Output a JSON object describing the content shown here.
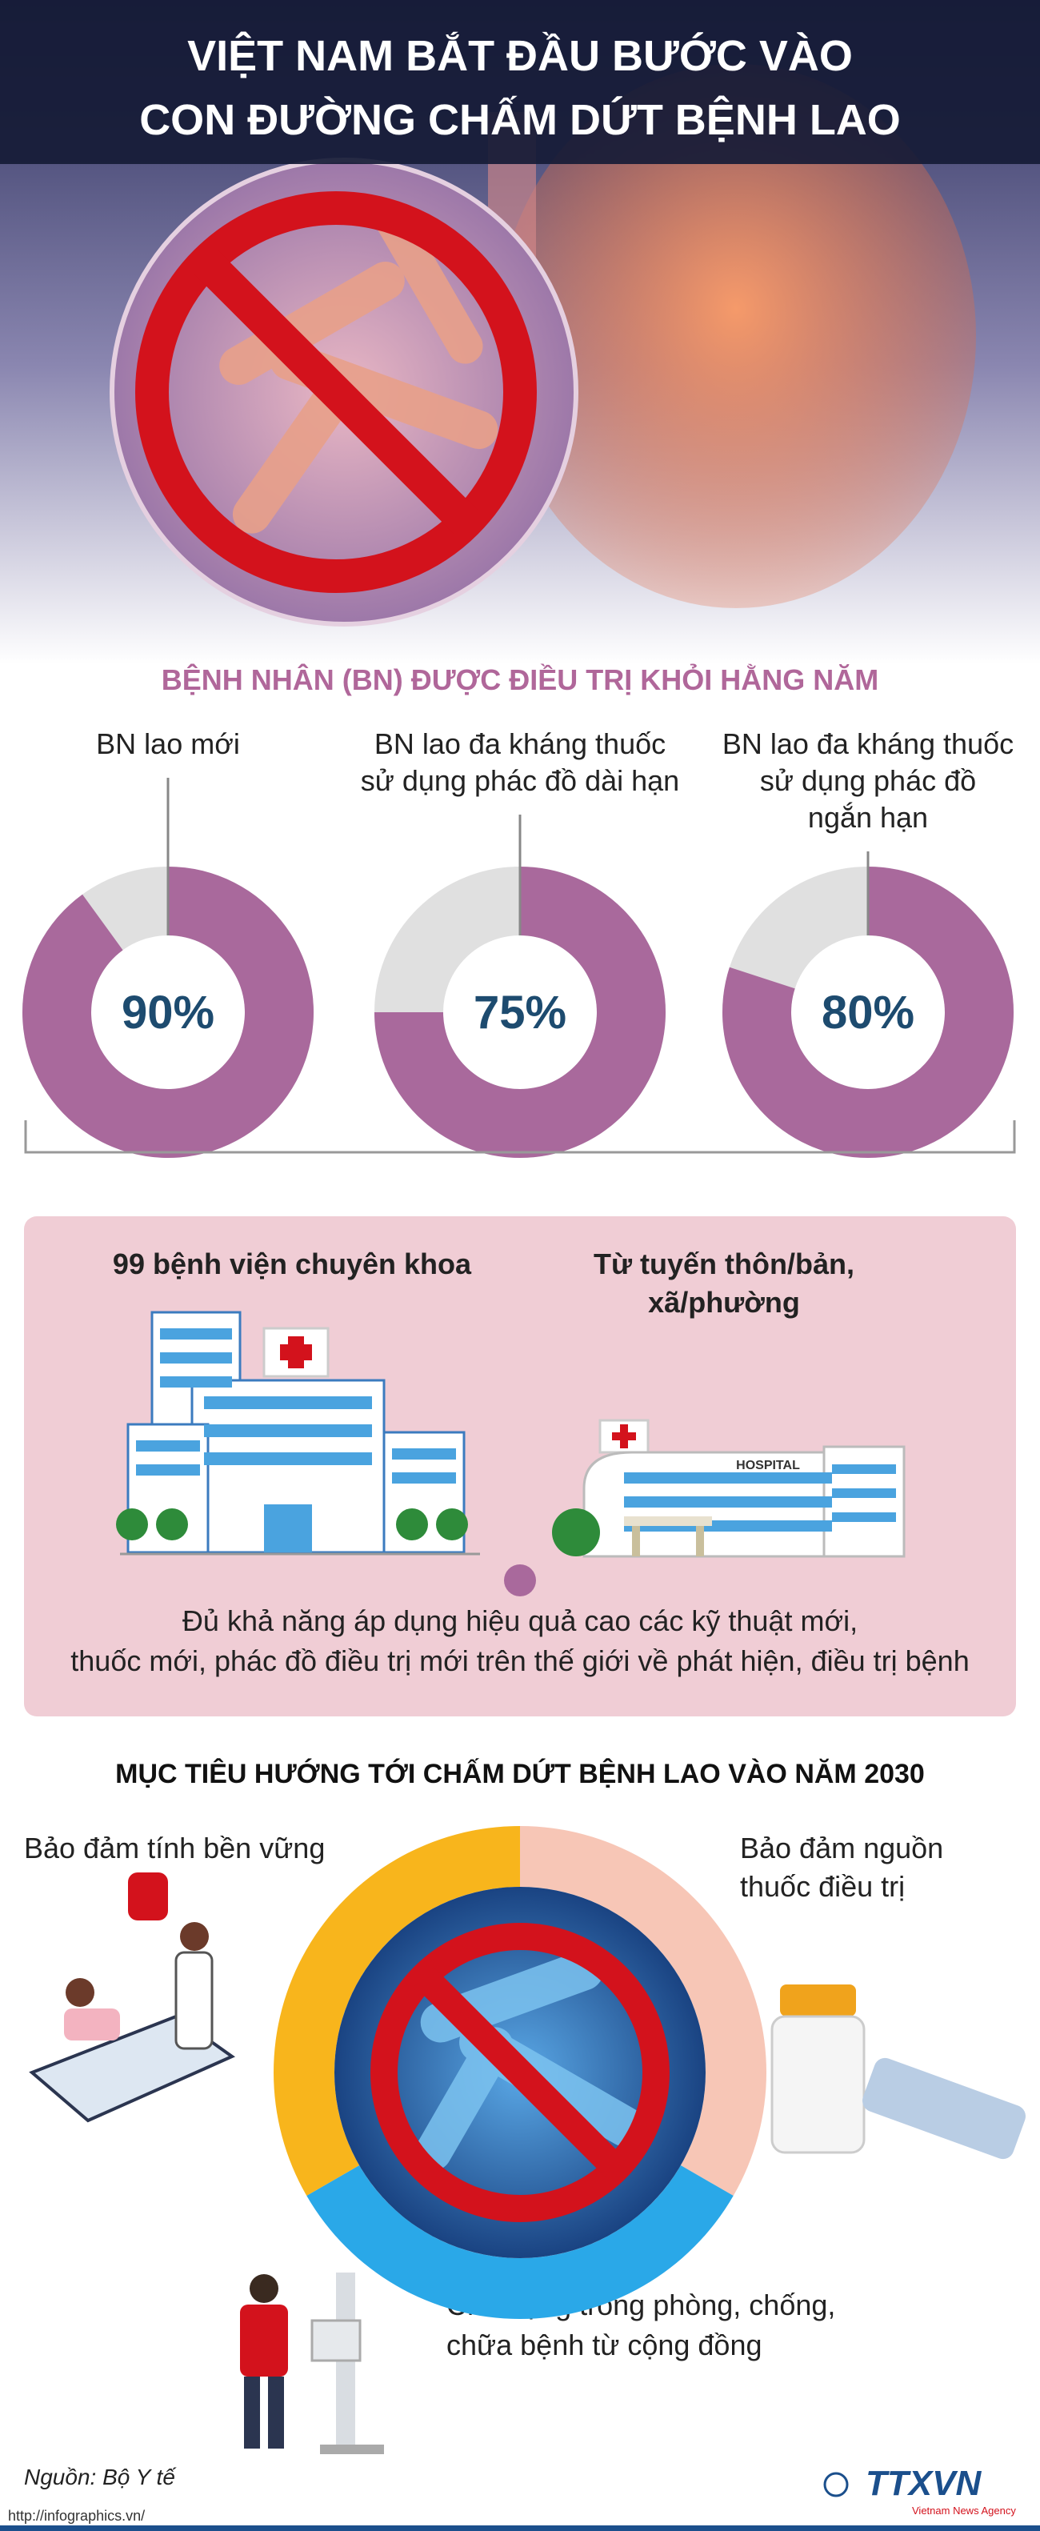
{
  "header": {
    "title": [
      "VIỆT NAM BẮT ĐẦU BƯỚC VÀO",
      "CON ĐƯỜNG CHẤM DỨT BỆNH LAO"
    ]
  },
  "treatment": {
    "title": "BỆNH NHÂN (BN) ĐƯỢC ĐIỀU TRỊ KHỎI HẰNG NĂM",
    "items": [
      {
        "label": [
          "BN lao mới"
        ],
        "value": 90,
        "value_label": "90%"
      },
      {
        "label": [
          "BN lao đa kháng thuốc",
          "sử dụng phác đồ dài hạn"
        ],
        "value": 75,
        "value_label": "75%"
      },
      {
        "label": [
          "BN lao đa kháng thuốc",
          "sử dụng phác đồ",
          "ngắn hạn"
        ],
        "value": 80,
        "value_label": "80%"
      }
    ]
  },
  "capacity": {
    "hospitals": "99 bệnh viện chuyên khoa",
    "grassroots": [
      "Từ tuyến thôn/bản,",
      "xã/phường"
    ],
    "hospital_sign": "HOSPITAL",
    "note": [
      "Đủ khả năng áp dụng hiệu quả cao các kỹ thuật mới,",
      "thuốc mới, phác đồ điều trị mới trên thế giới về phát hiện, điều trị bệnh"
    ]
  },
  "goals": {
    "title": "MỤC TIÊU HƯỚNG TỚI CHẤM DỨT BỆNH LAO VÀO NĂM 2030",
    "items": [
      [
        "Bảo đảm tính bền vững"
      ],
      [
        "Bảo đảm nguồn",
        "thuốc điều trị"
      ],
      [
        "Chủ động trong phòng, chống,",
        "chữa bệnh từ cộng đồng"
      ]
    ]
  },
  "footer": {
    "source": "Nguồn: Bộ Y tế",
    "url": "http://infographics.vn/",
    "logo": "TTXVN",
    "logo_sub": "Vietnam News Agency"
  }
}
